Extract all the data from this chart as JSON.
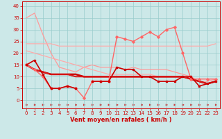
{
  "x": [
    0,
    1,
    2,
    3,
    4,
    5,
    6,
    7,
    8,
    9,
    10,
    11,
    12,
    13,
    14,
    15,
    16,
    17,
    18,
    19,
    20,
    21,
    22,
    23
  ],
  "bg_color": "#cce8e8",
  "grid_color": "#99cccc",
  "xlabel": "Vent moyen/en rafales ( km/h )",
  "xlabel_color": "#cc0000",
  "tick_color": "#cc0000",
  "series": [
    {
      "data": [
        35,
        37,
        28,
        20,
        14,
        13,
        12,
        14,
        15,
        14,
        14,
        14,
        13,
        14,
        13,
        13,
        13,
        13,
        12,
        11,
        10,
        8,
        8,
        9
      ],
      "color": "#ff9999",
      "marker": null,
      "linewidth": 0.9,
      "zorder": 1,
      "alpha": 1.0
    },
    {
      "data": [
        24,
        24,
        24,
        24,
        23,
        23,
        23,
        23,
        23,
        23,
        23,
        23,
        23,
        23,
        23,
        23,
        23,
        23,
        23,
        23,
        23,
        23,
        23,
        24
      ],
      "color": "#ffaaaa",
      "marker": null,
      "linewidth": 0.9,
      "zorder": 1,
      "alpha": 1.0
    },
    {
      "data": [
        21,
        20,
        19,
        18,
        17,
        16,
        15,
        14,
        13,
        12,
        11,
        11,
        11,
        11,
        11,
        11,
        10,
        10,
        10,
        10,
        9,
        9,
        9,
        9
      ],
      "color": "#ffaaaa",
      "marker": null,
      "linewidth": 0.9,
      "zorder": 1,
      "alpha": 1.0
    },
    {
      "data": [
        15,
        17,
        11,
        5,
        5,
        6,
        5,
        null,
        8,
        8,
        8,
        14,
        13,
        13,
        10,
        10,
        8,
        8,
        8,
        10,
        10,
        6,
        7,
        8
      ],
      "color": "#cc0000",
      "marker": "s",
      "markersize": 2.0,
      "linewidth": 1.2,
      "zorder": 4,
      "alpha": 1.0
    },
    {
      "data": [
        15,
        13,
        10,
        5,
        5,
        6,
        5,
        1,
        8,
        8,
        8,
        27,
        26,
        25,
        27,
        29,
        27,
        30,
        31,
        20,
        9,
        9,
        9,
        9
      ],
      "color": "#ff6666",
      "marker": "D",
      "markersize": 1.8,
      "linewidth": 1.0,
      "zorder": 3,
      "alpha": 1.0
    },
    {
      "data": [
        15,
        13,
        12,
        11,
        11,
        11,
        11,
        10,
        10,
        10,
        10,
        10,
        10,
        10,
        10,
        10,
        10,
        10,
        10,
        10,
        9,
        8,
        7,
        8
      ],
      "color": "#cc0000",
      "marker": null,
      "linewidth": 1.8,
      "zorder": 2,
      "alpha": 1.0
    },
    {
      "data": [
        15,
        13,
        12,
        11,
        11,
        11,
        10,
        10,
        10,
        10,
        10,
        10,
        10,
        10,
        10,
        10,
        10,
        10,
        10,
        10,
        9,
        8,
        7,
        8
      ],
      "color": "#cc0000",
      "marker": null,
      "linewidth": 1.3,
      "zorder": 2,
      "alpha": 1.0
    },
    {
      "data": [
        15,
        13,
        12,
        11,
        11,
        11,
        10,
        10,
        10,
        10,
        10,
        10,
        10,
        10,
        10,
        10,
        10,
        10,
        10,
        10,
        9,
        8,
        7,
        8
      ],
      "color": "#dd2222",
      "marker": null,
      "linewidth": 0.9,
      "zorder": 2,
      "alpha": 1.0
    }
  ],
  "ylim": [
    -3.5,
    42
  ],
  "yticks": [
    0,
    5,
    10,
    15,
    20,
    25,
    30,
    35,
    40
  ],
  "axis_label_fontsize": 6.0,
  "tick_fontsize": 5.0
}
